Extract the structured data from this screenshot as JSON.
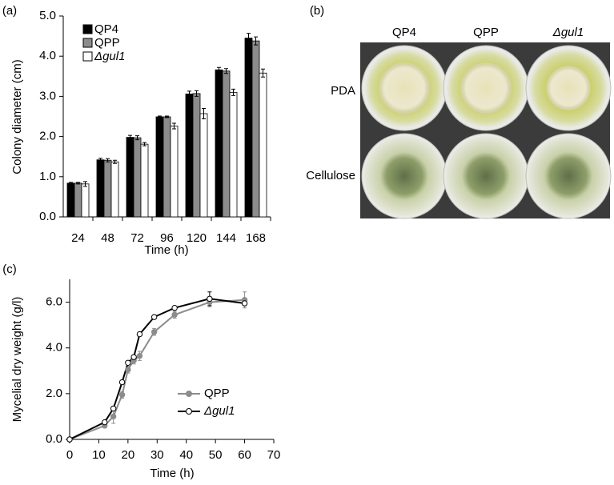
{
  "chart_data": [
    {
      "type": "bar",
      "panel_label": "(a)",
      "x_label": "Time (h)",
      "y_label": "Colony diameter (cm)",
      "categories": [
        "24",
        "48",
        "72",
        "96",
        "120",
        "144",
        "168"
      ],
      "series": [
        {
          "name": "QP4",
          "color": "#000000",
          "values": [
            0.84,
            1.42,
            1.98,
            2.49,
            3.06,
            3.66,
            4.45
          ],
          "errors": [
            0.02,
            0.04,
            0.05,
            0.02,
            0.07,
            0.06,
            0.12
          ]
        },
        {
          "name": "QPP",
          "color": "#8c8c8c",
          "values": [
            0.84,
            1.41,
            1.97,
            2.49,
            3.07,
            3.63,
            4.38
          ],
          "errors": [
            0.02,
            0.04,
            0.05,
            0.02,
            0.07,
            0.06,
            0.1
          ]
        },
        {
          "name": "Δgul1",
          "color": "#ffffff",
          "values": [
            0.82,
            1.37,
            1.81,
            2.26,
            2.57,
            3.1,
            3.58
          ],
          "errors": [
            0.06,
            0.04,
            0.04,
            0.07,
            0.13,
            0.08,
            0.1
          ]
        }
      ],
      "ylim": [
        0,
        5
      ],
      "yticks": [
        {
          "value": 0,
          "label": "0.0"
        },
        {
          "value": 1,
          "label": "1.0"
        },
        {
          "value": 2,
          "label": "2.0"
        },
        {
          "value": 3,
          "label": "3.0"
        },
        {
          "value": 4,
          "label": "4.0"
        },
        {
          "value": 5,
          "label": "5.0"
        }
      ],
      "legend": "upper left"
    },
    {
      "type": "line",
      "panel_label": "(c)",
      "x_label": "Time (h)",
      "y_label": "Mycelial dry weight (g/l)",
      "x": [
        0,
        12,
        15,
        18,
        20,
        22,
        24,
        29,
        36,
        48,
        60
      ],
      "series": [
        {
          "name": "QPP",
          "color": "#8c8c8c",
          "marker_color": "#8c8c8c",
          "values": [
            0,
            0.6,
            1.0,
            1.95,
            3.05,
            3.45,
            3.65,
            4.7,
            5.45,
            6.0,
            6.1
          ],
          "errors": [
            0,
            0.05,
            0.3,
            0.15,
            0.15,
            0.15,
            0.2,
            0.15,
            0.15,
            0.2,
            0.35
          ]
        },
        {
          "name": "Δgul1",
          "color": "#000000",
          "marker_color": "#ffffff",
          "values": [
            0,
            0.75,
            1.35,
            2.5,
            3.35,
            3.6,
            4.6,
            5.35,
            5.75,
            6.15,
            5.95
          ],
          "errors": [
            0,
            0.05,
            0.05,
            0.05,
            0.05,
            0.05,
            0.05,
            0.05,
            0.05,
            0.3,
            0.1
          ]
        }
      ],
      "xlim": [
        0,
        70
      ],
      "xticks": [
        0,
        10,
        20,
        30,
        40,
        50,
        60,
        70
      ],
      "ylim": [
        0,
        7
      ],
      "yticks": [
        {
          "value": 0,
          "label": "0.0"
        },
        {
          "value": 2,
          "label": "2.0"
        },
        {
          "value": 4,
          "label": "4.0"
        },
        {
          "value": 6,
          "label": "6.0"
        }
      ],
      "legend": "lower right"
    }
  ],
  "photo_panel": {
    "panel_label": "(b)",
    "columns": [
      "QP4",
      "QPP",
      "Δgul1"
    ],
    "rows": [
      "PDA",
      "Cellulose"
    ]
  }
}
